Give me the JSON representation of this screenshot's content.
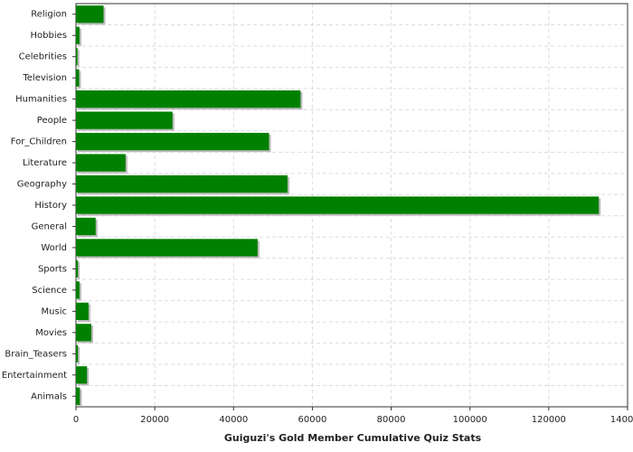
{
  "chart_data": {
    "type": "bar",
    "orientation": "horizontal",
    "title": "Guiguzi's Gold Member Cumulative Quiz Stats",
    "categories": [
      "Religion",
      "Hobbies",
      "Celebrities",
      "Television",
      "Humanities",
      "People",
      "For_Children",
      "Literature",
      "Geography",
      "History",
      "General",
      "World",
      "Sports",
      "Science",
      "Music",
      "Movies",
      "Brain_Teasers",
      "Entertainment",
      "Animals"
    ],
    "values": [
      7000,
      900,
      400,
      800,
      57000,
      24500,
      49000,
      12600,
      53700,
      132700,
      5000,
      46100,
      500,
      900,
      3200,
      3900,
      500,
      2800,
      1000
    ],
    "color": "#008000",
    "xlim": [
      0,
      140000
    ],
    "xticks": [
      0,
      20000,
      40000,
      60000,
      80000,
      100000,
      120000,
      140000
    ],
    "grid": true
  }
}
